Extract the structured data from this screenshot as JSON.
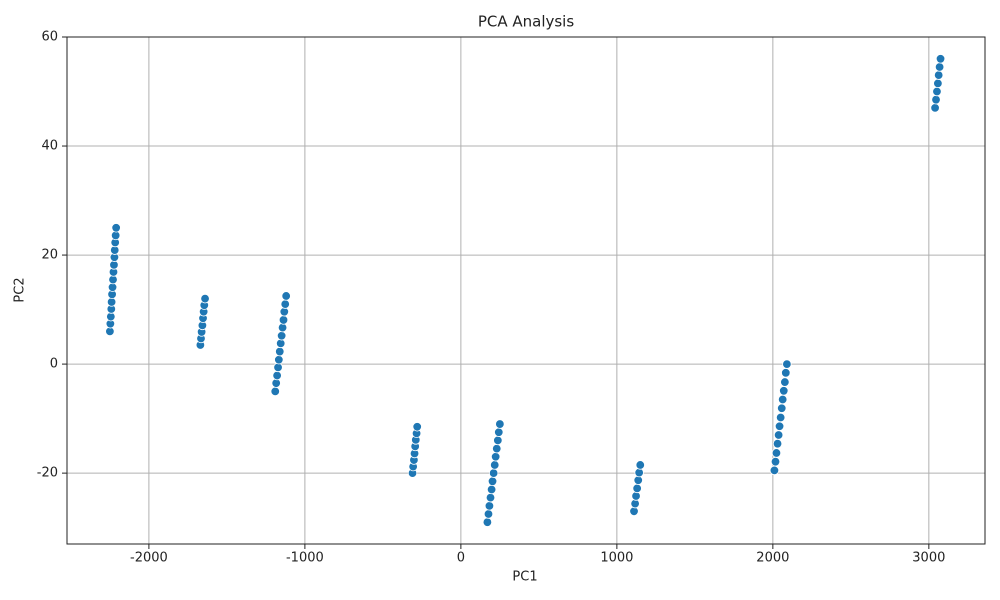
{
  "chart_data": {
    "type": "scatter",
    "title": "PCA Analysis",
    "x_label": "PC1",
    "y_label": "PC2",
    "color": "#1f77b4",
    "grid": true,
    "xlim": [
      -2525,
      3360
    ],
    "ylim": [
      -33,
      60
    ],
    "xticks": [
      -2000,
      -1000,
      0,
      1000,
      2000,
      3000
    ],
    "yticks": [
      -20,
      0,
      20,
      40,
      60
    ],
    "x": [
      -2250,
      -2247,
      -2244,
      -2241,
      -2239,
      -2236,
      -2233,
      -2230,
      -2227,
      -2224,
      -2221,
      -2219,
      -2216,
      -2213,
      -2210,
      -1670,
      -1666,
      -1662,
      -1657,
      -1653,
      -1649,
      -1645,
      -1640,
      -1190,
      -1184,
      -1178,
      -1172,
      -1167,
      -1161,
      -1155,
      -1149,
      -1143,
      -1137,
      -1132,
      -1126,
      -1120,
      -310,
      -306,
      -301,
      -297,
      -293,
      -289,
      -284,
      -280,
      170,
      177,
      183,
      190,
      197,
      203,
      210,
      217,
      223,
      230,
      237,
      243,
      250,
      1110,
      1117,
      1123,
      1130,
      1137,
      1143,
      1150,
      2010,
      2017,
      2023,
      2030,
      2037,
      2043,
      2050,
      2057,
      2063,
      2070,
      2077,
      2083,
      2090,
      3040,
      3046,
      3052,
      3058,
      3063,
      3069,
      3075
    ],
    "y": [
      6,
      7.4,
      8.7,
      10.1,
      11.4,
      12.8,
      14.1,
      15.5,
      16.9,
      18.2,
      19.6,
      20.9,
      22.3,
      23.6,
      25,
      3.5,
      4.7,
      5.9,
      7.1,
      8.4,
      9.6,
      10.8,
      12,
      -5,
      -3.5,
      -2.1,
      -0.6,
      0.8,
      2.3,
      3.8,
      5.2,
      6.7,
      8.1,
      9.6,
      11,
      12.5,
      -20,
      -18.8,
      -17.6,
      -16.4,
      -15.1,
      -13.9,
      -12.7,
      -11.5,
      -29,
      -27.5,
      -26,
      -24.5,
      -23,
      -21.5,
      -20,
      -18.5,
      -17,
      -15.5,
      -14,
      -12.5,
      -11,
      -27,
      -25.6,
      -24.2,
      -22.8,
      -21.3,
      -19.9,
      -18.5,
      -19.5,
      -17.9,
      -16.3,
      -14.6,
      -13,
      -11.4,
      -9.8,
      -8.1,
      -6.5,
      -4.9,
      -3.3,
      -1.6,
      0,
      47,
      48.5,
      50,
      51.5,
      53,
      54.5,
      56
    ]
  }
}
